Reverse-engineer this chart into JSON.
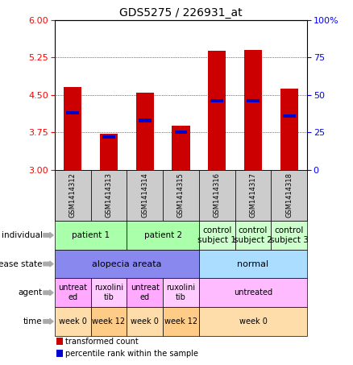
{
  "title": "GDS5275 / 226931_at",
  "samples": [
    "GSM1414312",
    "GSM1414313",
    "GSM1414314",
    "GSM1414315",
    "GSM1414316",
    "GSM1414317",
    "GSM1414318"
  ],
  "bar_values": [
    4.65,
    3.72,
    4.55,
    3.88,
    5.38,
    5.4,
    4.62
  ],
  "percentile_values": [
    38,
    22,
    33,
    25,
    46,
    46,
    36
  ],
  "ylim_left": [
    3,
    6
  ],
  "ylim_right": [
    0,
    100
  ],
  "yticks_left": [
    3,
    3.75,
    4.5,
    5.25,
    6
  ],
  "yticks_right": [
    0,
    25,
    50,
    75,
    100
  ],
  "bar_color": "#cc0000",
  "percentile_color": "#0000cc",
  "bar_width": 0.5,
  "individual_color_patient": "#aaffaa",
  "individual_color_control": "#ccffcc",
  "disease_color_aa": "#8888ee",
  "disease_color_normal": "#aaddff",
  "agent_color_untreated": "#ffaaff",
  "agent_color_ruxo": "#ffccff",
  "agent_color_untreated_big": "#ffbbff",
  "time_color_week0": "#ffddaa",
  "time_color_week12": "#ffcc88",
  "header_bg": "#cccccc",
  "legend_red_label": "transformed count",
  "legend_blue_label": "percentile rank within the sample",
  "row_labels": [
    "individual",
    "disease state",
    "agent",
    "time"
  ],
  "arrow_color": "#aaaaaa"
}
